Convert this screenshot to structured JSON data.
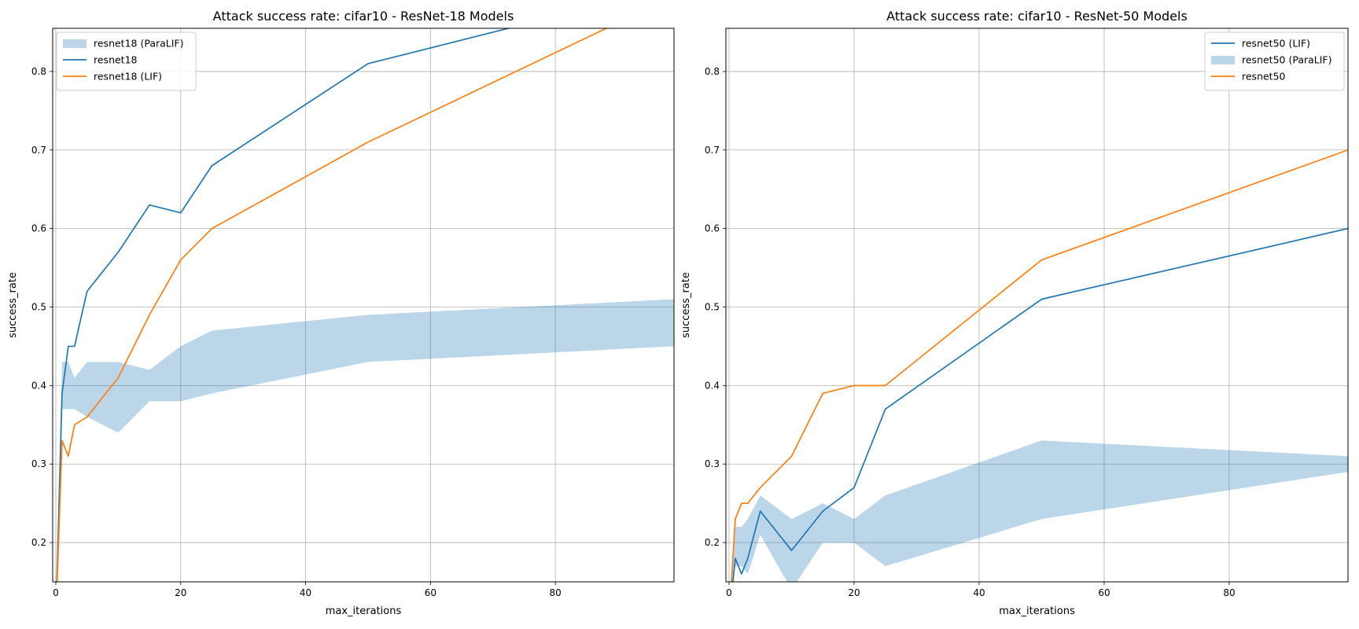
{
  "chart_data": [
    {
      "type": "line",
      "title": "Attack success rate: cifar10 - ResNet-18 Models",
      "xlabel": "max_iterations",
      "ylabel": "success_rate",
      "xlim": [
        -0.5,
        99
      ],
      "ylim": [
        0.15,
        0.855
      ],
      "xticks": [
        0,
        20,
        40,
        60,
        80
      ],
      "yticks": [
        0.2,
        0.3,
        0.4,
        0.5,
        0.6,
        0.7,
        0.8
      ],
      "grid": true,
      "legend_position": "upper-left",
      "legend": [
        {
          "label": "resnet18 (ParaLIF)",
          "kind": "band",
          "color": "#1f77b4"
        },
        {
          "label": "resnet18",
          "kind": "line",
          "color": "#1f77b4"
        },
        {
          "label": "resnet18 (LIF)",
          "kind": "line",
          "color": "#ff7f0e"
        }
      ],
      "bands": [
        {
          "name": "resnet18 (ParaLIF)",
          "color": "#1f77b4",
          "opacity": 0.3,
          "x": [
            0,
            1,
            2,
            3,
            5,
            10,
            15,
            20,
            25,
            50,
            99
          ],
          "lower": [
            0.12,
            0.37,
            0.37,
            0.37,
            0.36,
            0.34,
            0.38,
            0.38,
            0.39,
            0.43,
            0.45
          ],
          "upper": [
            0.12,
            0.43,
            0.43,
            0.41,
            0.43,
            0.43,
            0.42,
            0.45,
            0.47,
            0.49,
            0.51
          ]
        }
      ],
      "series": [
        {
          "name": "resnet18",
          "color": "#1f77b4",
          "x": [
            0,
            1,
            2,
            3,
            5,
            10,
            15,
            20,
            25,
            50,
            100
          ],
          "values": [
            0.1,
            0.39,
            0.45,
            0.45,
            0.52,
            0.57,
            0.63,
            0.62,
            0.68,
            0.81,
            0.91
          ]
        },
        {
          "name": "resnet18 (LIF)",
          "color": "#ff7f0e",
          "x": [
            0,
            1,
            2,
            3,
            5,
            10,
            15,
            20,
            25,
            50,
            100
          ],
          "values": [
            0.1,
            0.33,
            0.31,
            0.35,
            0.36,
            0.41,
            0.49,
            0.56,
            0.6,
            0.71,
            0.9
          ]
        }
      ]
    },
    {
      "type": "line",
      "title": "Attack success rate: cifar10 - ResNet-50 Models",
      "xlabel": "max_iterations",
      "ylabel": "success_rate",
      "xlim": [
        -0.5,
        99
      ],
      "ylim": [
        0.15,
        0.855
      ],
      "xticks": [
        0,
        20,
        40,
        60,
        80
      ],
      "yticks": [
        0.2,
        0.3,
        0.4,
        0.5,
        0.6,
        0.7,
        0.8
      ],
      "grid": true,
      "legend_position": "upper-right",
      "legend": [
        {
          "label": "resnet50 (LIF)",
          "kind": "line",
          "color": "#1f77b4"
        },
        {
          "label": "resnet50 (ParaLIF)",
          "kind": "band",
          "color": "#1f77b4"
        },
        {
          "label": "resnet50",
          "kind": "line",
          "color": "#ff7f0e"
        }
      ],
      "bands": [
        {
          "name": "resnet50 (ParaLIF)",
          "color": "#1f77b4",
          "opacity": 0.3,
          "x": [
            0,
            1,
            2,
            3,
            5,
            10,
            15,
            20,
            25,
            50,
            99
          ],
          "lower": [
            0.12,
            0.17,
            0.17,
            0.16,
            0.21,
            0.14,
            0.2,
            0.2,
            0.17,
            0.23,
            0.29
          ],
          "upper": [
            0.12,
            0.22,
            0.22,
            0.23,
            0.26,
            0.23,
            0.25,
            0.23,
            0.26,
            0.33,
            0.31
          ]
        }
      ],
      "series": [
        {
          "name": "resnet50 (LIF)",
          "color": "#1f77b4",
          "x": [
            0,
            1,
            2,
            3,
            5,
            10,
            15,
            20,
            25,
            50,
            99
          ],
          "values": [
            0.1,
            0.18,
            0.16,
            0.18,
            0.24,
            0.19,
            0.24,
            0.27,
            0.37,
            0.51,
            0.6
          ]
        },
        {
          "name": "resnet50",
          "color": "#ff7f0e",
          "x": [
            0,
            1,
            2,
            3,
            5,
            10,
            15,
            20,
            25,
            50,
            99
          ],
          "values": [
            0.1,
            0.23,
            0.25,
            0.25,
            0.27,
            0.31,
            0.39,
            0.4,
            0.4,
            0.56,
            0.7
          ]
        }
      ]
    }
  ]
}
